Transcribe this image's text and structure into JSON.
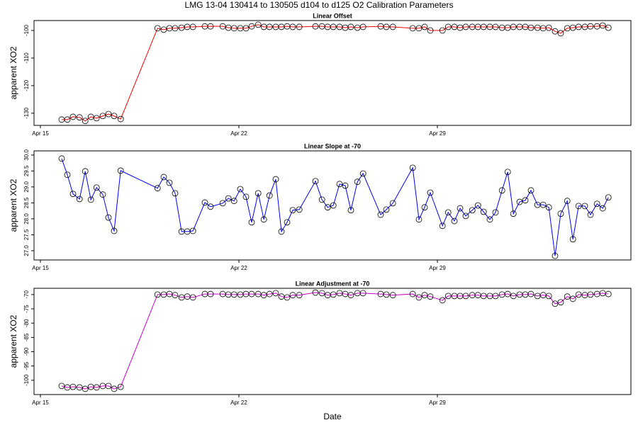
{
  "title": "LMG   13-04    130414 to 130505    d104 to d125   O2 Calibration Parameters",
  "chart_data": [
    {
      "type": "line",
      "title": "Linear Offset",
      "y_label": "apparent XO2",
      "x": [
        15.75,
        15.95,
        16.15,
        16.38,
        16.58,
        16.78,
        16.98,
        17.2,
        17.4,
        17.6,
        17.83,
        19.13,
        19.35,
        19.55,
        19.75,
        19.98,
        20.18,
        20.38,
        20.8,
        21.0,
        21.43,
        21.63,
        21.83,
        22.05,
        22.25,
        22.45,
        22.68,
        22.88,
        23.08,
        23.3,
        23.5,
        23.7,
        23.9,
        24.13,
        24.7,
        24.93,
        25.13,
        25.33,
        25.55,
        25.75,
        25.95,
        26.18,
        26.38,
        27.0,
        27.2,
        27.43,
        28.13,
        28.35,
        28.55,
        28.75,
        29.18,
        29.38,
        29.6,
        29.8,
        30.0,
        30.23,
        30.43,
        30.63,
        30.85,
        31.05,
        31.28,
        31.48,
        31.68,
        31.9,
        32.1,
        32.3,
        32.53,
        32.73,
        32.93,
        33.15,
        33.35,
        33.58,
        33.78,
        33.98,
        34.2,
        34.4,
        34.63,
        34.83,
        35.03
      ],
      "series": [
        {
          "color": "#ff0000",
          "values": [
            -132.3,
            -132.3,
            -131.3,
            -131.5,
            -132.8,
            -131.3,
            -131.8,
            -131.0,
            -130.3,
            -131.0,
            -132.1,
            -99.2,
            -99.7,
            -99.2,
            -99.2,
            -99.0,
            -98.7,
            -98.7,
            -98.5,
            -98.5,
            -98.5,
            -99.0,
            -99.2,
            -99.2,
            -99.2,
            -98.5,
            -97.9,
            -98.7,
            -98.7,
            -98.7,
            -98.7,
            -98.5,
            -98.7,
            -98.7,
            -98.5,
            -98.5,
            -98.7,
            -98.7,
            -98.7,
            -99.0,
            -98.7,
            -99.0,
            -98.7,
            -98.5,
            -98.7,
            -98.7,
            -99.2,
            -99.2,
            -98.7,
            -100.0,
            -100.0,
            -98.7,
            -98.7,
            -99.0,
            -98.7,
            -98.7,
            -98.7,
            -98.7,
            -98.7,
            -98.7,
            -99.0,
            -99.0,
            -98.7,
            -98.7,
            -98.7,
            -99.0,
            -99.0,
            -99.2,
            -99.0,
            -100.3,
            -101.0,
            -99.2,
            -99.0,
            -98.7,
            -98.7,
            -98.5,
            -98.5,
            -98.2,
            -99.0
          ]
        }
      ],
      "marker_color": "#000000",
      "xlim": [
        14.775,
        35.825
      ],
      "xticks": [
        {
          "value": 15,
          "label": "Apr 15"
        },
        {
          "value": 22,
          "label": "Apr 22"
        },
        {
          "value": 29,
          "label": "Apr 29"
        }
      ],
      "ylim": [
        -134.4,
        -96.4
      ],
      "yticks": [
        -100,
        -110,
        -120,
        -130
      ]
    },
    {
      "type": "line",
      "title": "Linear Slope at -70",
      "y_label": "apparent XO2",
      "x": [
        15.75,
        15.95,
        16.15,
        16.38,
        16.58,
        16.78,
        16.98,
        17.2,
        17.4,
        17.6,
        17.83,
        19.13,
        19.35,
        19.55,
        19.75,
        19.98,
        20.18,
        20.38,
        20.8,
        21.0,
        21.43,
        21.63,
        21.83,
        22.05,
        22.25,
        22.45,
        22.68,
        22.88,
        23.08,
        23.3,
        23.5,
        23.7,
        23.9,
        24.13,
        24.7,
        24.93,
        25.13,
        25.33,
        25.55,
        25.75,
        25.95,
        26.18,
        26.38,
        27.0,
        27.2,
        27.43,
        28.13,
        28.35,
        28.55,
        28.75,
        29.18,
        29.38,
        29.6,
        29.8,
        30.0,
        30.23,
        30.43,
        30.63,
        30.85,
        31.05,
        31.28,
        31.48,
        31.68,
        31.9,
        32.1,
        32.3,
        32.53,
        32.73,
        32.93,
        33.15,
        33.35,
        33.58,
        33.78,
        33.98,
        34.2,
        34.4,
        34.63,
        34.83,
        35.03
      ],
      "series": [
        {
          "color": "#0000ff",
          "values": [
            29.89,
            29.38,
            28.78,
            28.62,
            29.49,
            28.6,
            28.98,
            28.76,
            28.04,
            27.62,
            29.51,
            28.96,
            29.31,
            29.13,
            28.8,
            27.6,
            27.6,
            27.62,
            28.51,
            28.38,
            28.49,
            28.64,
            28.56,
            28.93,
            28.69,
            27.89,
            28.8,
            27.98,
            28.73,
            29.24,
            27.6,
            27.89,
            28.27,
            28.29,
            29.18,
            28.6,
            28.36,
            28.42,
            29.09,
            29.04,
            28.27,
            29.16,
            29.42,
            28.13,
            28.29,
            28.49,
            29.6,
            27.98,
            28.36,
            28.82,
            27.78,
            28.2,
            27.93,
            28.33,
            28.09,
            28.27,
            28.42,
            28.22,
            27.98,
            28.2,
            28.89,
            29.47,
            28.16,
            28.53,
            28.58,
            28.89,
            28.44,
            28.44,
            28.36,
            26.84,
            28.16,
            28.56,
            27.36,
            28.4,
            28.4,
            28.13,
            28.47,
            28.33,
            28.67
          ]
        }
      ],
      "marker_color": "#000000",
      "xlim": [
        14.775,
        35.825
      ],
      "xticks": [
        {
          "value": 15,
          "label": "Apr 15"
        },
        {
          "value": 22,
          "label": "Apr 22"
        },
        {
          "value": 29,
          "label": "Apr 29"
        }
      ],
      "ylim": [
        26.71,
        30.13
      ],
      "yticks": [
        {
          "value": 27,
          "label": "27.0"
        },
        27.5,
        {
          "value": 28,
          "label": "28.0"
        },
        28.5,
        {
          "value": 29,
          "label": "29.0"
        },
        29.5,
        {
          "value": 30,
          "label": "30.0"
        }
      ]
    },
    {
      "type": "line",
      "title": "Linear Adjustment at -70",
      "y_label": "apparent XO2",
      "x_label": "Date",
      "x": [
        15.75,
        15.95,
        16.15,
        16.38,
        16.58,
        16.78,
        16.98,
        17.2,
        17.4,
        17.6,
        17.83,
        19.13,
        19.35,
        19.55,
        19.75,
        19.98,
        20.18,
        20.38,
        20.8,
        21.0,
        21.43,
        21.63,
        21.83,
        22.05,
        22.25,
        22.45,
        22.68,
        22.88,
        23.08,
        23.3,
        23.5,
        23.7,
        23.9,
        24.13,
        24.7,
        24.93,
        25.13,
        25.33,
        25.55,
        25.75,
        25.95,
        26.18,
        26.38,
        27.0,
        27.2,
        27.43,
        28.13,
        28.35,
        28.55,
        28.75,
        29.18,
        29.38,
        29.6,
        29.8,
        30.0,
        30.23,
        30.43,
        30.63,
        30.85,
        31.05,
        31.28,
        31.48,
        31.68,
        31.9,
        32.1,
        32.3,
        32.53,
        32.73,
        32.93,
        33.15,
        33.35,
        33.58,
        33.78,
        33.98,
        34.2,
        34.4,
        34.63,
        34.83,
        35.03
      ],
      "series": [
        {
          "color": "#cc00cc",
          "values": [
            -102.0,
            -102.5,
            -102.3,
            -102.5,
            -103.0,
            -102.3,
            -102.5,
            -102.0,
            -102.0,
            -103.0,
            -102.3,
            -70.0,
            -70.0,
            -69.8,
            -70.2,
            -71.0,
            -70.7,
            -71.0,
            -69.8,
            -69.8,
            -69.8,
            -70.0,
            -70.0,
            -70.0,
            -69.8,
            -69.8,
            -69.8,
            -70.2,
            -69.8,
            -69.5,
            -70.7,
            -71.0,
            -70.2,
            -70.2,
            -69.3,
            -69.5,
            -70.2,
            -70.0,
            -69.5,
            -69.8,
            -70.2,
            -69.5,
            -69.5,
            -69.8,
            -70.0,
            -70.2,
            -69.8,
            -71.0,
            -70.2,
            -70.7,
            -72.0,
            -70.5,
            -70.5,
            -70.5,
            -70.5,
            -70.2,
            -70.2,
            -70.5,
            -70.5,
            -70.5,
            -70.0,
            -69.8,
            -70.5,
            -70.0,
            -70.0,
            -69.8,
            -70.5,
            -70.2,
            -70.5,
            -73.2,
            -72.7,
            -70.7,
            -71.5,
            -70.0,
            -70.2,
            -70.0,
            -69.8,
            -69.5,
            -69.8
          ]
        }
      ],
      "marker_color": "#000000",
      "xlim": [
        14.775,
        35.825
      ],
      "xticks": [
        {
          "value": 15,
          "label": "Apr 15"
        },
        {
          "value": 22,
          "label": "Apr 22"
        },
        {
          "value": 29,
          "label": "Apr 29"
        }
      ],
      "ylim": [
        -105.0,
        -67.8
      ],
      "yticks": [
        -70,
        -75,
        -80,
        -85,
        -90,
        -95,
        -100
      ]
    }
  ]
}
